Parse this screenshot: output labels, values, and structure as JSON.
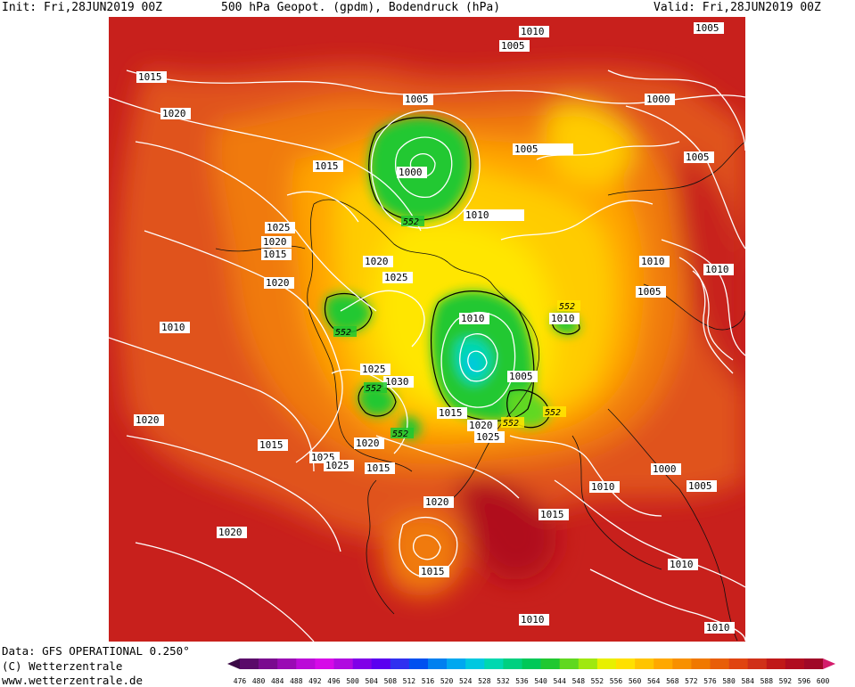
{
  "header": {
    "init_text": "Init: Fri,28JUN2019 00Z",
    "title_text": "500 hPa Geopot. (gpdm), Bodendruck (hPa)",
    "valid_text": "Valid: Fri,28JUN2019 00Z"
  },
  "footer": {
    "data_source": "Data: GFS OPERATIONAL 0.250°",
    "copyright": "(C) Wetterzentrale",
    "url": "www.wetterzentrale.de"
  },
  "colors": {
    "page_background": "#ffffff",
    "map_base": "#d83a1a",
    "isobar": "#ffffff",
    "geopot_552_contour": "#000000"
  },
  "colorbar": {
    "levels": [
      "476",
      "480",
      "484",
      "488",
      "492",
      "496",
      "500",
      "504",
      "508",
      "512",
      "516",
      "520",
      "524",
      "528",
      "532",
      "536",
      "540",
      "544",
      "548",
      "552",
      "556",
      "560",
      "564",
      "568",
      "572",
      "576",
      "580",
      "584",
      "588",
      "592",
      "596",
      "600"
    ],
    "colors": [
      "#3b0a45",
      "#5a0a6a",
      "#7a0a8f",
      "#9a0ab4",
      "#bb0ad8",
      "#d60ae8",
      "#b00ae0",
      "#8000e8",
      "#5a00f0",
      "#3030f0",
      "#0050f0",
      "#0080f0",
      "#00a8f0",
      "#00c8e0",
      "#00d8b0",
      "#00d080",
      "#00c858",
      "#20c830",
      "#60d820",
      "#a0e810",
      "#e8f000",
      "#ffe000",
      "#ffc400",
      "#ffa800",
      "#f89000",
      "#f07800",
      "#e85e08",
      "#e04410",
      "#d03018",
      "#c01818",
      "#b00c20",
      "#a00828",
      "#d41c6c"
    ]
  },
  "isobar_labels": [
    {
      "text": "1010"
    },
    {
      "text": "1005"
    },
    {
      "text": "1005"
    },
    {
      "text": "1015"
    },
    {
      "text": "1020"
    },
    {
      "text": "1005"
    },
    {
      "text": "1000"
    },
    {
      "text": "1015"
    },
    {
      "text": "1000"
    },
    {
      "text": "1005"
    },
    {
      "text": "1005"
    },
    {
      "text": "1010"
    },
    {
      "text": "1025"
    },
    {
      "text": "1020"
    },
    {
      "text": "1015"
    },
    {
      "text": "1020"
    },
    {
      "text": "1025"
    },
    {
      "text": "1020"
    },
    {
      "text": "1010"
    },
    {
      "text": "1010"
    },
    {
      "text": "1005"
    },
    {
      "text": "1010"
    },
    {
      "text": "1010"
    },
    {
      "text": "1010"
    },
    {
      "text": "1025"
    },
    {
      "text": "1030"
    },
    {
      "text": "1005"
    },
    {
      "text": "1015"
    },
    {
      "text": "1020"
    },
    {
      "text": "1025"
    },
    {
      "text": "1020"
    },
    {
      "text": "1015"
    },
    {
      "text": "1020"
    },
    {
      "text": "1025"
    },
    {
      "text": "1025"
    },
    {
      "text": "1015"
    },
    {
      "text": "1000"
    },
    {
      "text": "1010"
    },
    {
      "text": "1005"
    },
    {
      "text": "1020"
    },
    {
      "text": "1015"
    },
    {
      "text": "1020"
    },
    {
      "text": "1015"
    },
    {
      "text": "1010"
    },
    {
      "text": "1010"
    },
    {
      "text": "1010"
    }
  ],
  "geopot_labels": [
    {
      "text": "552"
    },
    {
      "text": "552"
    },
    {
      "text": "552"
    },
    {
      "text": "552"
    },
    {
      "text": "552"
    },
    {
      "text": "552"
    },
    {
      "text": "552"
    }
  ]
}
